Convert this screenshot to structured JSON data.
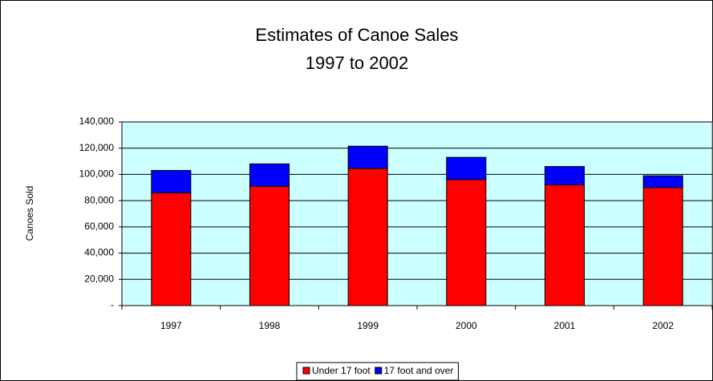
{
  "chart_data": {
    "type": "stacked_bar",
    "title": "Estimates of Canoe Sales",
    "subtitle": "1997 to 2002",
    "y_label": "Canoes Sold",
    "categories": [
      "1997",
      "1998",
      "1999",
      "2000",
      "2001",
      "2002"
    ],
    "series": [
      {
        "name": "Under 17 foot",
        "color": "#ff0000",
        "values": [
          86000,
          91000,
          104500,
          96000,
          92000,
          90000
        ]
      },
      {
        "name": "17 foot and over",
        "color": "#0000ff",
        "values": [
          17000,
          17000,
          17000,
          17000,
          14000,
          9000
        ]
      }
    ],
    "ylim": [
      0,
      140000
    ],
    "yticks": [
      {
        "value": 0,
        "label": "-"
      },
      {
        "value": 20000,
        "label": "20,000"
      },
      {
        "value": 40000,
        "label": "40,000"
      },
      {
        "value": 60000,
        "label": "60,000"
      },
      {
        "value": 80000,
        "label": "80,000"
      },
      {
        "value": 100000,
        "label": "100,000"
      },
      {
        "value": 120000,
        "label": "120,000"
      },
      {
        "value": 140000,
        "label": "140,000"
      }
    ],
    "grid": true,
    "legend": "bottom"
  }
}
